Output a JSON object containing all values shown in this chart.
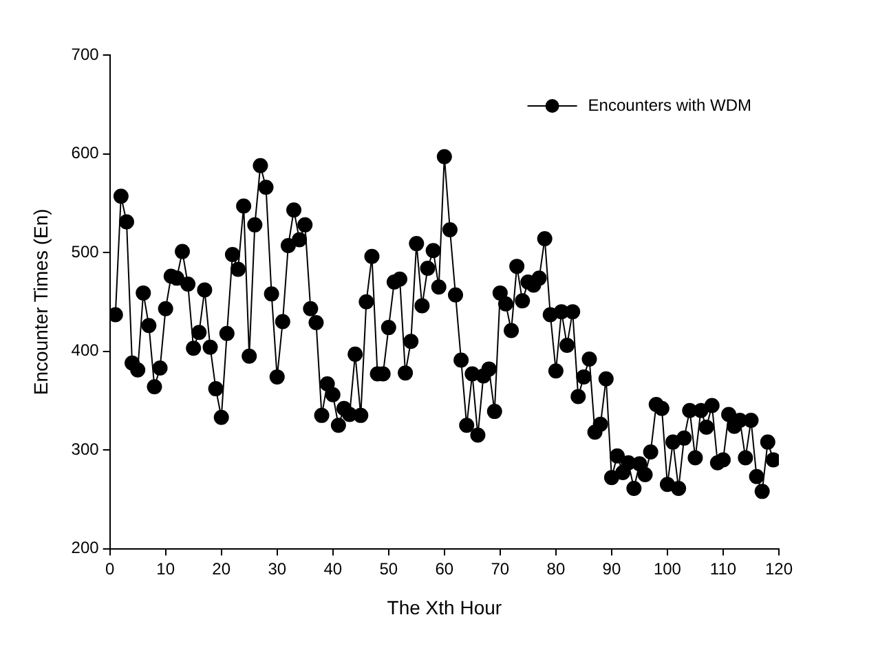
{
  "chart_data": {
    "type": "line",
    "xlabel": "The Xth Hour",
    "ylabel": "Encounter Times (En)",
    "x": [
      1,
      2,
      3,
      4,
      5,
      6,
      7,
      8,
      9,
      10,
      11,
      12,
      13,
      14,
      15,
      16,
      17,
      18,
      19,
      20,
      21,
      22,
      23,
      24,
      25,
      26,
      27,
      28,
      29,
      30,
      31,
      32,
      33,
      34,
      35,
      36,
      37,
      38,
      39,
      40,
      41,
      42,
      43,
      44,
      45,
      46,
      47,
      48,
      49,
      50,
      51,
      52,
      53,
      54,
      55,
      56,
      57,
      58,
      59,
      60,
      61,
      62,
      63,
      64,
      65,
      66,
      67,
      68,
      69,
      70,
      71,
      72,
      73,
      74,
      75,
      76,
      77,
      78,
      79,
      80,
      81,
      82,
      83,
      84,
      85,
      86,
      87,
      88,
      89,
      90,
      91,
      92,
      93,
      94,
      95,
      96,
      97,
      98,
      99,
      100,
      101,
      102,
      103,
      104,
      105,
      106,
      107,
      108,
      109,
      110,
      111,
      112,
      113,
      114,
      115,
      116,
      117,
      118,
      119
    ],
    "series": [
      {
        "name": "Encounters with WDM",
        "color": "#000000",
        "values": [
          437,
          557,
          531,
          388,
          381,
          459,
          426,
          364,
          383,
          443,
          476,
          474,
          501,
          468,
          403,
          419,
          462,
          404,
          362,
          333,
          418,
          498,
          483,
          547,
          395,
          528,
          588,
          566,
          458,
          374,
          430,
          507,
          543,
          513,
          528,
          443,
          429,
          335,
          367,
          356,
          325,
          342,
          336,
          397,
          335,
          450,
          496,
          377,
          377,
          424,
          470,
          473,
          378,
          410,
          509,
          446,
          484,
          502,
          465,
          597,
          523,
          457,
          391,
          325,
          377,
          315,
          375,
          382,
          339,
          459,
          448,
          421,
          486,
          451,
          470,
          467,
          474,
          514,
          437,
          380,
          440,
          406,
          440,
          354,
          374,
          392,
          318,
          326,
          372,
          272,
          294,
          277,
          287,
          261,
          286,
          275,
          298,
          346,
          342,
          265,
          308,
          261,
          312,
          340,
          292,
          340,
          323,
          345,
          287,
          290,
          336,
          324,
          330,
          292,
          330,
          273,
          258,
          308,
          290
        ]
      }
    ],
    "xlim": [
      0,
      120
    ],
    "xticks": [
      0,
      10,
      20,
      30,
      40,
      50,
      60,
      70,
      80,
      90,
      100,
      110,
      120
    ],
    "ylim": [
      200,
      700
    ],
    "yticks": [
      200,
      300,
      400,
      500,
      600,
      700
    ],
    "marker": "circle",
    "line_style": "solid",
    "legend": "top right"
  }
}
